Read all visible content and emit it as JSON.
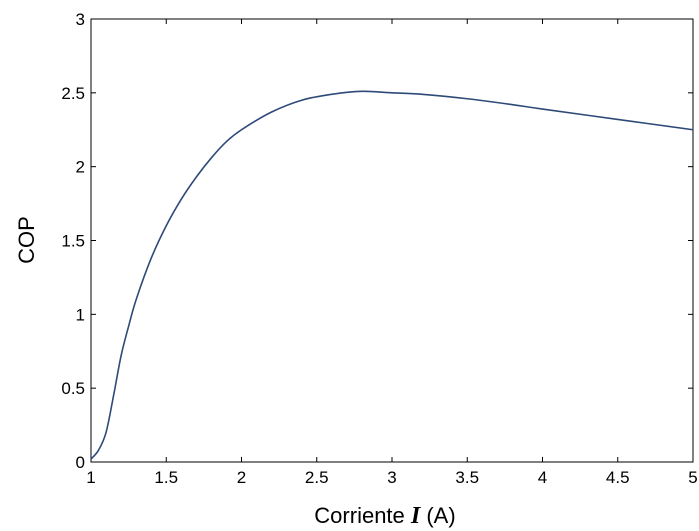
{
  "chart_data": {
    "type": "line",
    "title": "",
    "xlabel_prefix": "Corriente ",
    "xlabel_symbol": "I",
    "xlabel_suffix": " (A)",
    "ylabel": "COP",
    "xlim": [
      1,
      5
    ],
    "ylim": [
      0,
      3
    ],
    "x_ticks": [
      1,
      1.5,
      2,
      2.5,
      3,
      3.5,
      4,
      4.5,
      5
    ],
    "x_tick_labels": [
      "1",
      "1.5",
      "2",
      "2.5",
      "3",
      "3.5",
      "4",
      "4.5",
      "5"
    ],
    "y_ticks": [
      0,
      0.5,
      1,
      1.5,
      2,
      2.5,
      3
    ],
    "y_tick_labels": [
      "0",
      "0.5",
      "1",
      "1.5",
      "2",
      "2.5",
      "3"
    ],
    "grid": false,
    "line_color": "#2e4a78",
    "series": [
      {
        "x": [
          1.0,
          1.05,
          1.1,
          1.15,
          1.2,
          1.25,
          1.3,
          1.4,
          1.5,
          1.6,
          1.7,
          1.8,
          1.9,
          2.0,
          2.2,
          2.4,
          2.6,
          2.8,
          3.0,
          3.2,
          3.5,
          3.8,
          4.0,
          4.5,
          5.0
        ],
        "y": [
          0.02,
          0.08,
          0.2,
          0.45,
          0.72,
          0.92,
          1.1,
          1.38,
          1.6,
          1.78,
          1.93,
          2.06,
          2.17,
          2.25,
          2.37,
          2.45,
          2.49,
          2.51,
          2.5,
          2.49,
          2.46,
          2.42,
          2.39,
          2.32,
          2.25
        ]
      }
    ]
  }
}
